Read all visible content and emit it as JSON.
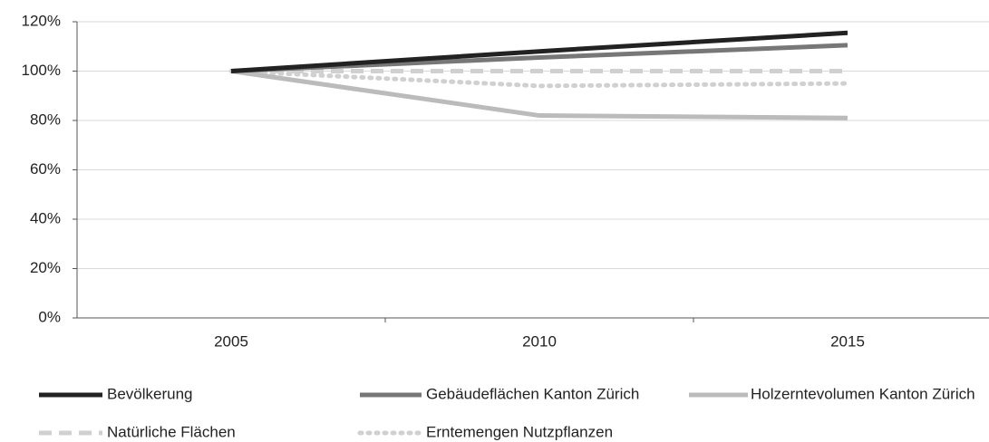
{
  "chart_data": {
    "type": "line",
    "categories": [
      "2005",
      "2010",
      "2015"
    ],
    "series": [
      {
        "name": "Bevölkerung",
        "color": "#222222",
        "style": "solid",
        "values": [
          100,
          108,
          115.5
        ]
      },
      {
        "name": "Gebäudeflächen Kanton Zürich",
        "color": "#777777",
        "style": "solid",
        "values": [
          100,
          105.5,
          110.5
        ]
      },
      {
        "name": "Holzerntevolumen Kanton Zürich",
        "color": "#bbbbbb",
        "style": "solid",
        "values": [
          100,
          82,
          81
        ]
      },
      {
        "name": "Natürliche Flächen",
        "color": "#d0d0d0",
        "style": "dashed",
        "values": [
          100,
          100,
          100
        ]
      },
      {
        "name": "Erntemengen Nutzpflanzen",
        "color": "#d0d0d0",
        "style": "dotted",
        "values": [
          100,
          94,
          95
        ]
      }
    ],
    "ylim": [
      0,
      120
    ],
    "yticks": [
      {
        "value": 0,
        "label": "0%"
      },
      {
        "value": 20,
        "label": "20%"
      },
      {
        "value": 40,
        "label": "40%"
      },
      {
        "value": 60,
        "label": "60%"
      },
      {
        "value": 80,
        "label": "80%"
      },
      {
        "value": 100,
        "label": "100%"
      },
      {
        "value": 120,
        "label": "120%"
      }
    ],
    "grid": true
  }
}
